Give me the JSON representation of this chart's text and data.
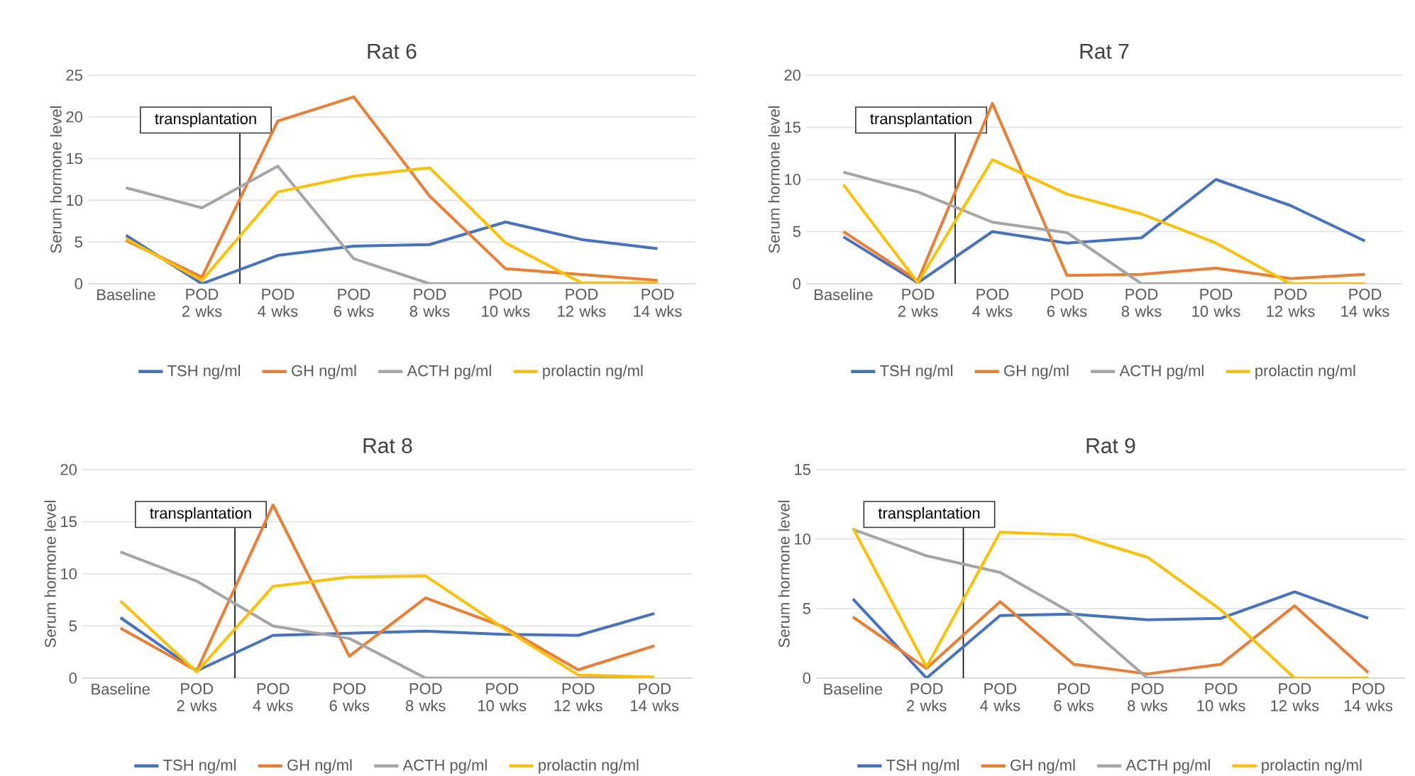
{
  "chart_data": [
    {
      "type": "line",
      "title": "Rat 6",
      "ylabel": "Serum hormone level",
      "categories": [
        "Baseline",
        "POD 2 wks",
        "POD 4 wks",
        "POD 6 wks",
        "POD 8 wks",
        "POD 10 wks",
        "POD 12 wks",
        "POD 14 wks"
      ],
      "ylim": [
        0,
        25
      ],
      "yticks": [
        0,
        5,
        10,
        15,
        20,
        25
      ],
      "grid": "y",
      "legend": "bottom",
      "annotations": [
        "transplantation"
      ],
      "series": [
        {
          "name": "TSH ng/ml",
          "color": "#4472c4",
          "values": [
            5.8,
            0,
            3.4,
            4.5,
            4.7,
            7.4,
            5.3,
            4.2
          ]
        },
        {
          "name": "GH ng/ml",
          "color": "#ed7d31",
          "values": [
            5.2,
            0.8,
            19.5,
            22.4,
            10.5,
            1.8,
            1.1,
            0.4
          ]
        },
        {
          "name": "ACTH pg/ml",
          "color": "#a5a5a5",
          "values": [
            11.5,
            9.1,
            14.1,
            3.0,
            0,
            0,
            0,
            0
          ]
        },
        {
          "name": "prolactin  ng/ml",
          "color": "#ffc000",
          "values": [
            5.4,
            0.4,
            11.0,
            12.9,
            13.9,
            4.9,
            0.1,
            0.1
          ]
        }
      ]
    },
    {
      "type": "line",
      "title": "Rat 7",
      "ylabel": "Serum hormone level",
      "categories": [
        "Baseline",
        "POD 2 wks",
        "POD 4 wks",
        "POD 6 wks",
        "POD 8 wks",
        "POD 10 wks",
        "POD 12 wks",
        "POD 14 wks"
      ],
      "ylim": [
        0,
        20
      ],
      "yticks": [
        0,
        5,
        10,
        15,
        20
      ],
      "grid": "y",
      "legend": "bottom",
      "annotations": [
        "transplantation"
      ],
      "series": [
        {
          "name": "TSH ng/ml",
          "color": "#4472c4",
          "values": [
            4.5,
            0.1,
            5.0,
            3.9,
            4.4,
            10.0,
            7.5,
            4.1
          ]
        },
        {
          "name": "GH ng/ml",
          "color": "#ed7d31",
          "values": [
            5.0,
            0.3,
            17.3,
            0.8,
            0.9,
            1.5,
            0.5,
            0.9
          ]
        },
        {
          "name": "ACTH pg/ml",
          "color": "#a5a5a5",
          "values": [
            10.7,
            8.8,
            5.9,
            4.9,
            0,
            0,
            0,
            0
          ]
        },
        {
          "name": "prolactin  ng/ml",
          "color": "#ffc000",
          "values": [
            9.5,
            0.1,
            11.9,
            8.6,
            6.7,
            3.9,
            0,
            0
          ]
        }
      ]
    },
    {
      "type": "line",
      "title": "Rat 8",
      "ylabel": "Serum hormone level",
      "categories": [
        "Baseline",
        "POD 2 wks",
        "POD 4 wks",
        "POD 6 wks",
        "POD 8 wks",
        "POD 10 wks",
        "POD 12 wks",
        "POD 14 wks"
      ],
      "ylim": [
        0,
        20
      ],
      "yticks": [
        0,
        5,
        10,
        15,
        20
      ],
      "grid": "y",
      "legend": "bottom",
      "annotations": [
        "transplantation"
      ],
      "series": [
        {
          "name": "TSH ng/ml",
          "color": "#4472c4",
          "values": [
            5.8,
            0.7,
            4.1,
            4.3,
            4.5,
            4.2,
            4.1,
            6.2
          ]
        },
        {
          "name": "GH ng/ml",
          "color": "#ed7d31",
          "values": [
            4.8,
            0.7,
            16.6,
            2.1,
            7.7,
            5.0,
            0.8,
            3.1
          ]
        },
        {
          "name": "ACTH pg/ml",
          "color": "#a5a5a5",
          "values": [
            12.1,
            9.3,
            5.0,
            3.8,
            0,
            0,
            0,
            0
          ]
        },
        {
          "name": "prolactin  ng/ml",
          "color": "#ffc000",
          "values": [
            7.4,
            0.6,
            8.8,
            9.7,
            9.8,
            4.9,
            0.3,
            0.1
          ]
        }
      ]
    },
    {
      "type": "line",
      "title": "Rat 9",
      "ylabel": "Serum hormone level",
      "categories": [
        "Baseline",
        "POD 2 wks",
        "POD 4 wks",
        "POD 6 wks",
        "POD 8 wks",
        "POD 10 wks",
        "POD 12 wks",
        "POD 14 wks"
      ],
      "ylim": [
        0,
        15
      ],
      "yticks": [
        0,
        5,
        10,
        15
      ],
      "grid": "y",
      "legend": "bottom",
      "annotations": [
        "transplantation"
      ],
      "series": [
        {
          "name": "TSH ng/ml",
          "color": "#4472c4",
          "values": [
            5.7,
            0,
            4.5,
            4.6,
            4.2,
            4.3,
            6.2,
            4.3
          ]
        },
        {
          "name": "GH ng/ml",
          "color": "#ed7d31",
          "values": [
            4.4,
            0.7,
            5.5,
            1.0,
            0.3,
            1.0,
            5.2,
            0.4
          ]
        },
        {
          "name": "ACTH pg/ml",
          "color": "#a5a5a5",
          "values": [
            10.7,
            8.8,
            7.6,
            4.6,
            0,
            0,
            0,
            0
          ]
        },
        {
          "name": "prolactin  ng/ml",
          "color": "#ffc000",
          "values": [
            10.8,
            0.8,
            10.5,
            10.3,
            8.7,
            4.9,
            0,
            0
          ]
        }
      ]
    }
  ]
}
